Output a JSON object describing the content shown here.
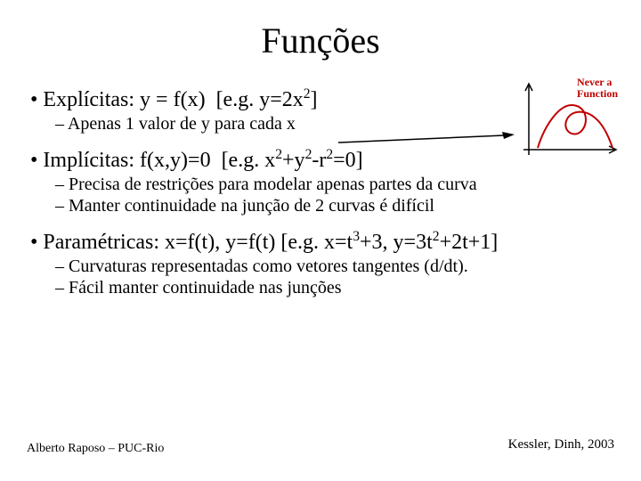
{
  "title": "Funções",
  "bullets": {
    "b1": {
      "text_html": "Explícitas: y = f(x)&nbsp;&nbsp;[e.g. y=2x<sup>2</sup>]"
    },
    "b1s1": {
      "text": "Apenas 1 valor de y para cada x"
    },
    "b2": {
      "text_html": "Implícitas: f(x,y)=0&nbsp;&nbsp;[e.g. x<sup>2</sup>+y<sup>2</sup>-r<sup>2</sup>=0]"
    },
    "b2s1": {
      "text": "Precisa de restrições para modelar apenas partes da curva"
    },
    "b2s2": {
      "text": "Manter continuidade na junção de 2 curvas é difícil"
    },
    "b3": {
      "text_html": "Paramétricas: x=f(t), y=f(t) [e.g. x=t<sup>3</sup>+3, y=3t<sup>2</sup>+2t+1]"
    },
    "b3s1": {
      "text": "Curvaturas representadas como vetores tangentes (d/dt)."
    },
    "b3s2": {
      "text": "Fácil manter continuidade nas junções"
    }
  },
  "figure": {
    "caption_line1": "Never a",
    "caption_line2": "Function",
    "axis_color": "#000000",
    "curve_color": "#c00000",
    "background": "#ffffff"
  },
  "arrow": {
    "color": "#000000"
  },
  "footer": {
    "left": "Alberto Raposo – PUC-Rio",
    "right": "Kessler, Dinh, 2003"
  }
}
